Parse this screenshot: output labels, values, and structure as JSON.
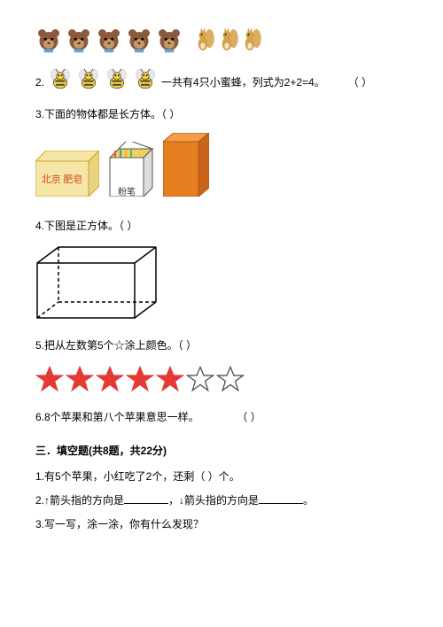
{
  "q1_row": {
    "bear_count": 5,
    "squirrel_count": 3,
    "bear_color": "#8b5a3c",
    "bear_face": "#c89968",
    "squirrel_color": "#d4a04a",
    "icon_size": 30
  },
  "q2": {
    "prefix": "2.",
    "bee_count": 4,
    "bee_icon_size": 28,
    "text": "一共有4只小蜜蜂，列式为2+2=4。",
    "paren": "（   ）",
    "bee_body": "#f4d03f",
    "bee_stripe": "#3a3a3a",
    "bee_wing": "#e8e8e8"
  },
  "q3": {
    "text": "3.下面的物体都是长方体。（   ）",
    "box1": {
      "label": "北京 肥皂",
      "fill": "#f5e6a8",
      "border": "#c9a227",
      "text_color": "#d84315",
      "w": 72,
      "h": 40
    },
    "box2": {
      "label": "粉笔",
      "fill": "#ffffff",
      "border": "#555555",
      "w": 46,
      "h": 52
    },
    "box3": {
      "fill": "#e67e22",
      "border": "#b35410",
      "w": 40,
      "h": 62
    }
  },
  "q4": {
    "text": "4.下图是正方体。（   ）",
    "cuboid": {
      "w": 110,
      "h": 62,
      "stroke": "#000000"
    }
  },
  "q5": {
    "text": "5.把从左数第5个☆涂上颜色。（   ）",
    "stars": [
      {
        "fill": "#e53935"
      },
      {
        "fill": "#e53935"
      },
      {
        "fill": "#e53935"
      },
      {
        "fill": "#e53935"
      },
      {
        "fill": "#e53935"
      },
      {
        "fill": "none"
      },
      {
        "fill": "none"
      }
    ],
    "star_stroke": "#444444",
    "star_size": 32
  },
  "q6": {
    "text": "6.8个苹果和第八个苹果意思一样。",
    "paren": "（   ）"
  },
  "section3": {
    "header": "三．填空题(共8题，共22分)",
    "q1": "1.有5个苹果，小红吃了2个，还剩（   ）个。",
    "q2_pre": "2.↑箭头指的方向是",
    "q2_mid": "，↓箭头指的方向是",
    "q2_end": "。",
    "q3": "3.写一写，涂一涂，你有什么发现？"
  }
}
